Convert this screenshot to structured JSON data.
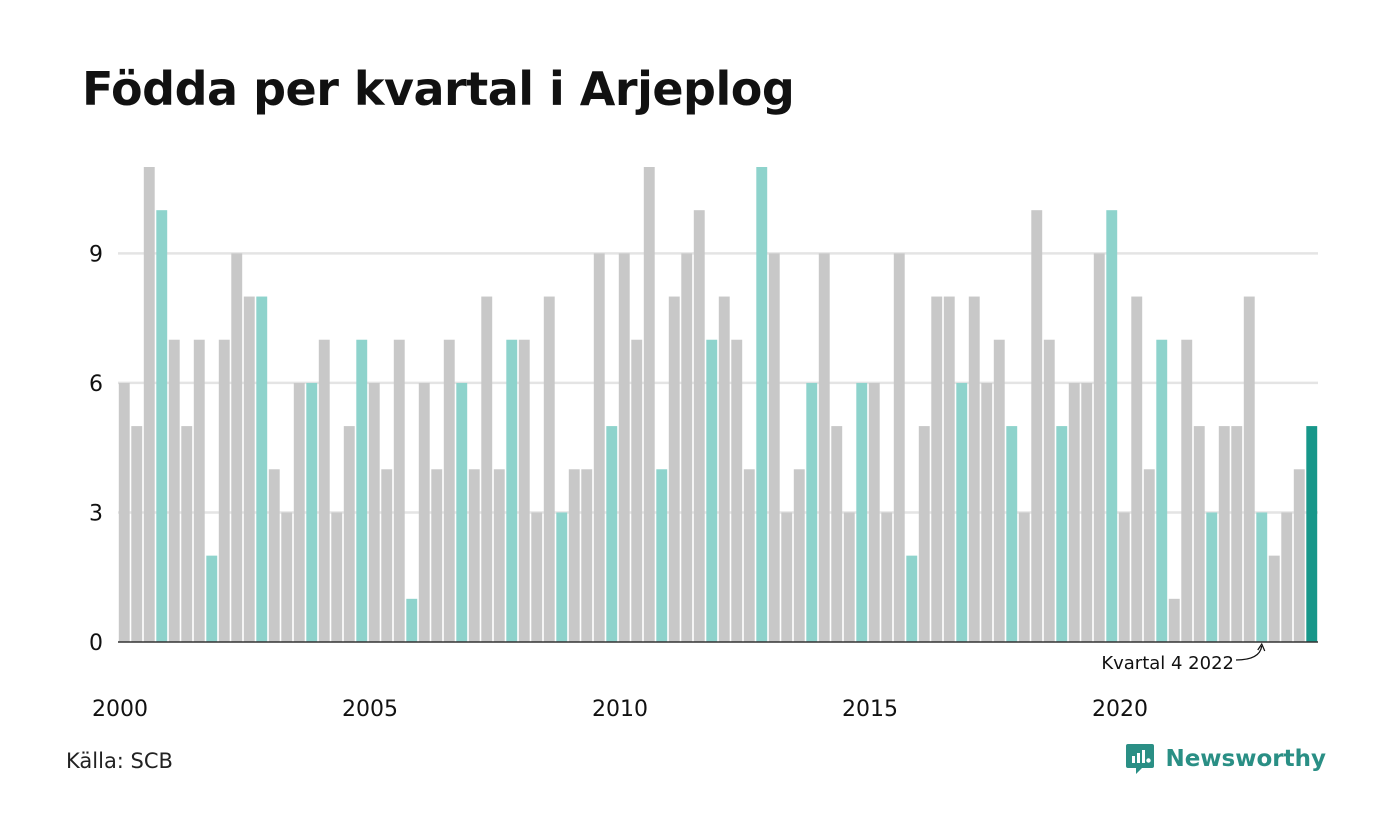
{
  "title": "Födda per kvartal i Arjeplog",
  "source": "Källa: SCB",
  "brand": {
    "name": "Newsworthy",
    "icon": "newsworthy-logo-icon"
  },
  "colors": {
    "bar": "#c8c8c8",
    "highlight_q1": "#8ed3cc",
    "latest": "#17978a",
    "grid": "#e4e4e4",
    "axis": "#333333",
    "text": "#111111",
    "brand": "#2a8f85"
  },
  "chart_data": {
    "type": "bar",
    "title": "Födda per kvartal i Arjeplog",
    "xlabel": "",
    "ylabel": "",
    "ylim": [
      0,
      11
    ],
    "yticks": [
      0,
      3,
      6,
      9
    ],
    "xticks": [
      {
        "year": 2000,
        "label": "2000"
      },
      {
        "year": 2005,
        "label": "2005"
      },
      {
        "year": 2010,
        "label": "2010"
      },
      {
        "year": 2015,
        "label": "2015"
      },
      {
        "year": 2020,
        "label": "2020"
      }
    ],
    "start_year": 2000,
    "start_quarter": 1,
    "values": [
      6,
      5,
      11,
      10,
      7,
      5,
      7,
      2,
      7,
      9,
      8,
      8,
      4,
      3,
      6,
      6,
      7,
      3,
      5,
      7,
      6,
      4,
      7,
      1,
      6,
      4,
      7,
      6,
      4,
      8,
      4,
      7,
      7,
      3,
      8,
      3,
      4,
      4,
      9,
      5,
      9,
      7,
      11,
      4,
      8,
      9,
      10,
      7,
      8,
      7,
      4,
      11,
      9,
      3,
      4,
      6,
      9,
      5,
      3,
      6,
      6,
      3,
      9,
      2,
      5,
      8,
      8,
      6,
      8,
      6,
      7,
      5,
      3,
      10,
      7,
      5,
      6,
      6,
      9,
      10,
      3,
      8,
      4,
      7,
      1,
      7,
      5,
      3,
      5,
      5,
      8,
      3,
      2,
      3,
      4,
      5
    ],
    "annotation": {
      "text": "Kvartal 4 2022"
    },
    "grid": true,
    "legend": "none"
  }
}
